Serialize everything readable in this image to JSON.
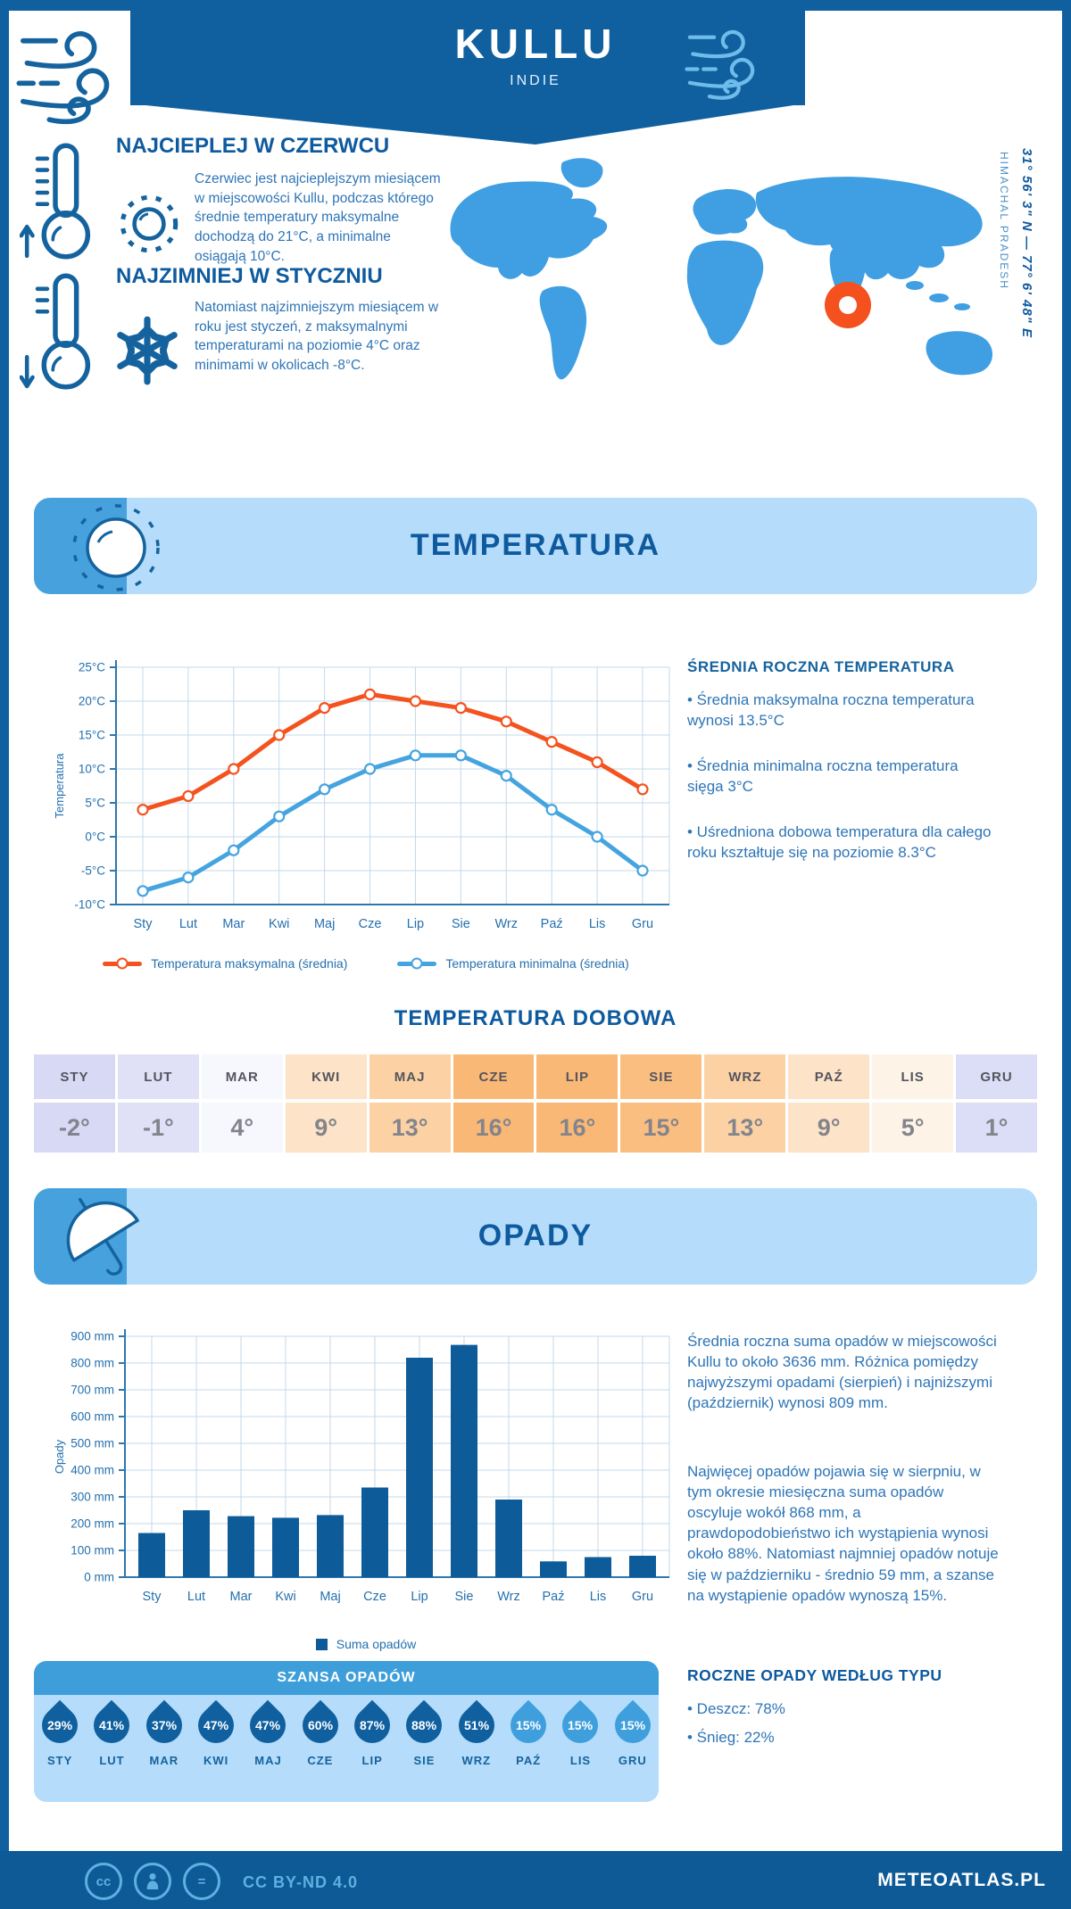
{
  "header": {
    "title": "KULLU",
    "subtitle": "INDIE"
  },
  "intro": {
    "warm": {
      "heading": "NAJCIEPLEJ W CZERWCU",
      "text": "Czerwiec jest najcieplejszym miesiącem w miejscowości Kullu, podczas którego średnie temperatury maksymalne dochodzą do 21°C, a minimalne osiągają 10°C."
    },
    "cold": {
      "heading": "NAJZIMNIEJ W STYCZNIU",
      "text": "Natomiast najzimniejszym miesiącem w roku jest styczeń, z maksymalnymi temperaturami na poziomie 4°C oraz minimami w okolicach -8°C."
    },
    "map": {
      "coordinates": "31° 56' 3\" N — 77° 6' 48\" E",
      "region": "HIMACHAL PRADESH",
      "marker_color": "#f4511e",
      "land_color": "#3f9fe2"
    }
  },
  "temperature": {
    "section_title": "TEMPERATURA",
    "annual": {
      "heading": "ŚREDNIA ROCZNA TEMPERATURA",
      "bullets": [
        "• Średnia maksymalna roczna temperatura wynosi 13.5°C",
        "• Średnia minimalna roczna temperatura sięga 3°C",
        "• Uśredniona dobowa temperatura dla całego roku kształtuje się na poziomie 8.3°C"
      ]
    },
    "daily": {
      "title": "TEMPERATURA DOBOWA",
      "months": [
        "STY",
        "LUT",
        "MAR",
        "KWI",
        "MAJ",
        "CZE",
        "LIP",
        "SIE",
        "WRZ",
        "PAŹ",
        "LIS",
        "GRU"
      ],
      "values": [
        "-2°",
        "-1°",
        "4°",
        "9°",
        "13°",
        "16°",
        "16°",
        "15°",
        "13°",
        "9°",
        "5°",
        "1°"
      ],
      "colors": [
        "#d8d9f5",
        "#e0e1f7",
        "#f7f8fd",
        "#fde3c7",
        "#fcd2a5",
        "#fab876",
        "#fab876",
        "#fbbe81",
        "#fcd2a5",
        "#fde3c7",
        "#fdf3e7",
        "#dcddf6"
      ]
    }
  },
  "precipitation": {
    "section_title": "OPADY",
    "summary1": "Średnia roczna suma opadów w miejscowości Kullu to około 3636 mm. Różnica pomiędzy najwyższymi opadami (sierpień) i najniższymi (październik) wynosi 809 mm.",
    "summary2": "Najwięcej opadów pojawia się w sierpniu, w tym okresie miesięczna suma opadów oscyluje wokół 868 mm, a prawdopodobieństwo ich wystąpienia wynosi około 88%. Natomiast najmniej opadów notuje się w październiku - średnio 59 mm, a szanse na wystąpienie opadów wynoszą 15%.",
    "chance": {
      "title": "SZANSA OPADÓW",
      "items": [
        {
          "month": "STY",
          "value": "29%",
          "light": false
        },
        {
          "month": "LUT",
          "value": "41%",
          "light": false
        },
        {
          "month": "MAR",
          "value": "37%",
          "light": false
        },
        {
          "month": "KWI",
          "value": "47%",
          "light": false
        },
        {
          "month": "MAJ",
          "value": "47%",
          "light": false
        },
        {
          "month": "CZE",
          "value": "60%",
          "light": false
        },
        {
          "month": "LIP",
          "value": "87%",
          "light": false
        },
        {
          "month": "SIE",
          "value": "88%",
          "light": false
        },
        {
          "month": "WRZ",
          "value": "51%",
          "light": false
        },
        {
          "month": "PAŹ",
          "value": "15%",
          "light": true
        },
        {
          "month": "LIS",
          "value": "15%",
          "light": true
        },
        {
          "month": "GRU",
          "value": "15%",
          "light": true
        }
      ]
    },
    "types": {
      "heading": "ROCZNE OPADY WEDŁUG TYPU",
      "bullets": [
        "• Deszcz: 78%",
        "• Śnieg: 22%"
      ]
    }
  },
  "chart_data": [
    {
      "type": "line",
      "title": "TEMPERATURA",
      "categories": [
        "Sty",
        "Lut",
        "Mar",
        "Kwi",
        "Maj",
        "Cze",
        "Lip",
        "Sie",
        "Wrz",
        "Paź",
        "Lis",
        "Gru"
      ],
      "series": [
        {
          "name": "Temperatura maksymalna (średnia)",
          "color": "#f4531f",
          "values": [
            4,
            6,
            10,
            15,
            19,
            21,
            20,
            19,
            17,
            14,
            11,
            7
          ]
        },
        {
          "name": "Temperatura minimalna (średnia)",
          "color": "#45a4e0",
          "values": [
            -8,
            -6,
            -2,
            3,
            7,
            10,
            12,
            12,
            9,
            4,
            0,
            -5
          ]
        }
      ],
      "xlabel": "",
      "ylabel": "Temperatura",
      "ylim": [
        -10,
        25
      ],
      "ytick_step": 5,
      "ytick_suffix": "°C",
      "grid": true,
      "legend_position": "bottom"
    },
    {
      "type": "bar",
      "title": "OPADY",
      "categories": [
        "Sty",
        "Lut",
        "Mar",
        "Kwi",
        "Maj",
        "Cze",
        "Lip",
        "Sie",
        "Wrz",
        "Paź",
        "Lis",
        "Gru"
      ],
      "series": [
        {
          "name": "Suma opadów",
          "color": "#0d5c99",
          "values": [
            165,
            250,
            228,
            222,
            232,
            335,
            820,
            868,
            290,
            59,
            75,
            80
          ]
        }
      ],
      "xlabel": "",
      "ylabel": "Opady",
      "ylim": [
        0,
        900
      ],
      "ytick_step": 100,
      "ytick_suffix": " mm",
      "grid": true,
      "legend_position": "bottom"
    }
  ],
  "footer": {
    "license": "CC BY-ND 4.0",
    "site": "METEOATLAS.PL"
  }
}
